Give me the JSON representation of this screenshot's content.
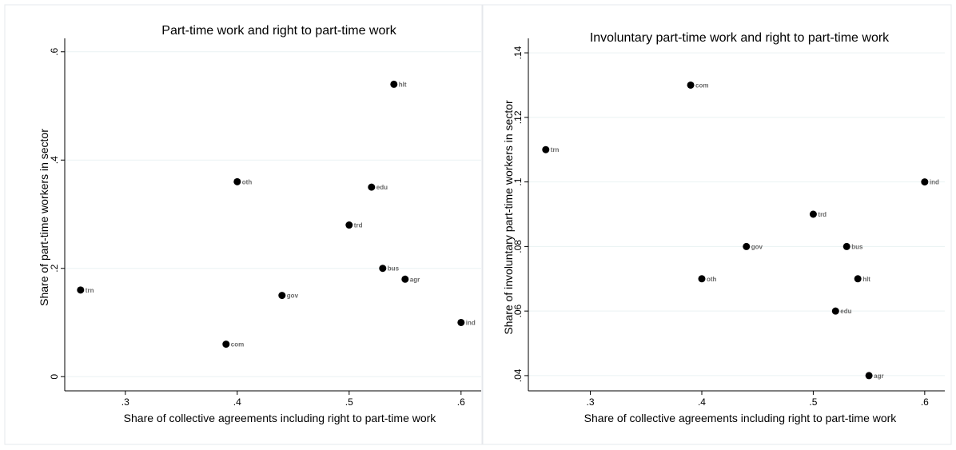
{
  "chart_data": [
    {
      "type": "scatter",
      "title": "Part-time work and right to part-time work",
      "xlabel": "Share of collective agreements including right to part-time work",
      "ylabel": "Share of part-time workers in sector",
      "xlim": [
        0.258,
        0.608
      ],
      "ylim": [
        -0.01,
        0.61
      ],
      "xticks": [
        0.3,
        0.4,
        0.5,
        0.6
      ],
      "xtick_labels": [
        ".3",
        ".4",
        ".5",
        ".6"
      ],
      "yticks": [
        0,
        0.2,
        0.4,
        0.6
      ],
      "ytick_labels": [
        "0",
        ".2",
        ".4",
        ".6"
      ],
      "grid": true,
      "legend": "none",
      "marker_color": "#000000",
      "label_color": "#666666",
      "points": [
        {
          "label": "trn",
          "x": 0.26,
          "y": 0.16
        },
        {
          "label": "com",
          "x": 0.39,
          "y": 0.06
        },
        {
          "label": "oth",
          "x": 0.4,
          "y": 0.36
        },
        {
          "label": "gov",
          "x": 0.44,
          "y": 0.15
        },
        {
          "label": "trd",
          "x": 0.5,
          "y": 0.28
        },
        {
          "label": "edu",
          "x": 0.52,
          "y": 0.35
        },
        {
          "label": "bus",
          "x": 0.53,
          "y": 0.2
        },
        {
          "label": "hlt",
          "x": 0.54,
          "y": 0.54
        },
        {
          "label": "agr",
          "x": 0.55,
          "y": 0.18
        },
        {
          "label": "ind",
          "x": 0.6,
          "y": 0.1
        }
      ]
    },
    {
      "type": "scatter",
      "title": "Involuntary part-time work and right to part-time work",
      "xlabel": "Share of collective agreements including right to part-time work",
      "ylabel": "Share of involuntary part-time workers in sector",
      "xlim": [
        0.258,
        0.608
      ],
      "ylim": [
        0.038,
        0.142
      ],
      "xticks": [
        0.3,
        0.4,
        0.5,
        0.6
      ],
      "xtick_labels": [
        ".3",
        ".4",
        ".5",
        ".6"
      ],
      "yticks": [
        0.04,
        0.06,
        0.08,
        0.1,
        0.12,
        0.14
      ],
      "ytick_labels": [
        ".04",
        ".06",
        ".08",
        ".1",
        ".12",
        ".14"
      ],
      "grid": true,
      "legend": "none",
      "marker_color": "#000000",
      "label_color": "#666666",
      "points": [
        {
          "label": "trn",
          "x": 0.26,
          "y": 0.11
        },
        {
          "label": "com",
          "x": 0.39,
          "y": 0.13
        },
        {
          "label": "oth",
          "x": 0.4,
          "y": 0.07
        },
        {
          "label": "gov",
          "x": 0.44,
          "y": 0.08
        },
        {
          "label": "trd",
          "x": 0.5,
          "y": 0.09
        },
        {
          "label": "edu",
          "x": 0.52,
          "y": 0.06
        },
        {
          "label": "bus",
          "x": 0.53,
          "y": 0.08
        },
        {
          "label": "hlt",
          "x": 0.54,
          "y": 0.07
        },
        {
          "label": "agr",
          "x": 0.55,
          "y": 0.04
        },
        {
          "label": "ind",
          "x": 0.6,
          "y": 0.1
        }
      ]
    }
  ]
}
